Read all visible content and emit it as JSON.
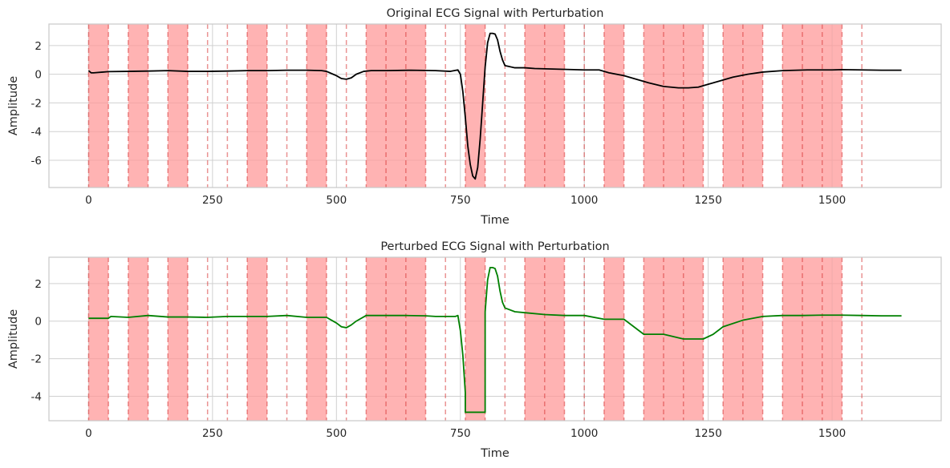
{
  "colors": {
    "region_fill": "#ff9999",
    "region_line": "#d62728",
    "original_line": "#000000",
    "perturbed_line": "#008000",
    "grid": "#d0d0d0",
    "frame": "#c8c8c8"
  },
  "chart_data": [
    {
      "type": "line",
      "title": "Original ECG Signal with Perturbation",
      "xlabel": "Time",
      "ylabel": "Amplitude",
      "xlim": [
        -80,
        1720
      ],
      "ylim": [
        -7.9,
        3.5
      ],
      "xticks": [
        0,
        250,
        500,
        750,
        1000,
        1250,
        1500
      ],
      "yticks": [
        -6,
        -4,
        -2,
        0,
        2
      ],
      "grid": true,
      "shaded_regions": [
        [
          0,
          40
        ],
        [
          80,
          120
        ],
        [
          160,
          200
        ],
        [
          320,
          360
        ],
        [
          440,
          480
        ],
        [
          560,
          600
        ],
        [
          600,
          640
        ],
        [
          640,
          680
        ],
        [
          760,
          800
        ],
        [
          880,
          920
        ],
        [
          920,
          960
        ],
        [
          1040,
          1080
        ],
        [
          1120,
          1160
        ],
        [
          1160,
          1200
        ],
        [
          1200,
          1240
        ],
        [
          1280,
          1320
        ],
        [
          1320,
          1360
        ],
        [
          1400,
          1440
        ],
        [
          1440,
          1480
        ],
        [
          1480,
          1500
        ],
        [
          1500,
          1520
        ]
      ],
      "dashed_boundaries": [
        0,
        40,
        80,
        120,
        160,
        200,
        240,
        280,
        320,
        360,
        400,
        440,
        480,
        520,
        560,
        600,
        640,
        680,
        720,
        760,
        800,
        840,
        880,
        920,
        960,
        1000,
        1040,
        1080,
        1120,
        1160,
        1200,
        1240,
        1280,
        1320,
        1360,
        1400,
        1440,
        1480,
        1520,
        1560
      ],
      "series": [
        {
          "color": "#000000",
          "x": [
            0,
            5,
            10,
            40,
            80,
            120,
            160,
            200,
            240,
            280,
            320,
            360,
            400,
            440,
            470,
            480,
            490,
            500,
            510,
            520,
            530,
            540,
            555,
            570,
            600,
            650,
            700,
            730,
            745,
            750,
            755,
            760,
            765,
            770,
            775,
            780,
            785,
            790,
            795,
            800,
            805,
            810,
            815,
            820,
            825,
            830,
            835,
            840,
            860,
            880,
            900,
            950,
            1000,
            1030,
            1050,
            1080,
            1100,
            1130,
            1160,
            1190,
            1210,
            1230,
            1250,
            1270,
            1300,
            1330,
            1360,
            1400,
            1450,
            1500,
            1520,
            1560,
            1600,
            1640
          ],
          "y": [
            0.25,
            0.1,
            0.1,
            0.18,
            0.2,
            0.22,
            0.25,
            0.2,
            0.2,
            0.22,
            0.25,
            0.25,
            0.28,
            0.28,
            0.25,
            0.2,
            0.05,
            -0.1,
            -0.3,
            -0.35,
            -0.25,
            0.0,
            0.2,
            0.25,
            0.25,
            0.28,
            0.25,
            0.2,
            0.3,
            0.0,
            -1.2,
            -3.0,
            -5.0,
            -6.3,
            -7.1,
            -7.3,
            -6.5,
            -4.5,
            -2.0,
            0.5,
            2.2,
            2.85,
            2.85,
            2.8,
            2.4,
            1.6,
            1.0,
            0.6,
            0.45,
            0.45,
            0.4,
            0.35,
            0.3,
            0.3,
            0.1,
            -0.1,
            -0.3,
            -0.6,
            -0.85,
            -0.95,
            -0.95,
            -0.9,
            -0.7,
            -0.5,
            -0.2,
            0.0,
            0.15,
            0.25,
            0.3,
            0.3,
            0.32,
            0.3,
            0.28,
            0.28
          ]
        }
      ]
    },
    {
      "type": "line",
      "title": "Perturbed ECG Signal with Perturbation",
      "xlabel": "Time",
      "ylabel": "Amplitude",
      "xlim": [
        -80,
        1720
      ],
      "ylim": [
        -5.3,
        3.4
      ],
      "xticks": [
        0,
        250,
        500,
        750,
        1000,
        1250,
        1500
      ],
      "yticks": [
        -4,
        -2,
        0,
        2
      ],
      "grid": true,
      "shaded_regions": [
        [
          0,
          40
        ],
        [
          80,
          120
        ],
        [
          160,
          200
        ],
        [
          320,
          360
        ],
        [
          440,
          480
        ],
        [
          560,
          600
        ],
        [
          600,
          640
        ],
        [
          640,
          680
        ],
        [
          760,
          800
        ],
        [
          880,
          920
        ],
        [
          920,
          960
        ],
        [
          1040,
          1080
        ],
        [
          1120,
          1160
        ],
        [
          1160,
          1200
        ],
        [
          1200,
          1240
        ],
        [
          1280,
          1320
        ],
        [
          1320,
          1360
        ],
        [
          1400,
          1440
        ],
        [
          1440,
          1480
        ],
        [
          1480,
          1500
        ],
        [
          1500,
          1520
        ]
      ],
      "dashed_boundaries": [
        0,
        40,
        80,
        120,
        160,
        200,
        240,
        280,
        320,
        360,
        400,
        440,
        480,
        520,
        560,
        600,
        640,
        680,
        720,
        760,
        800,
        840,
        880,
        920,
        960,
        1000,
        1040,
        1080,
        1120,
        1160,
        1200,
        1240,
        1280,
        1320,
        1360,
        1400,
        1440,
        1480,
        1520,
        1560
      ],
      "series": [
        {
          "color": "#008000",
          "x": [
            0,
            40,
            45,
            80,
            120,
            160,
            200,
            240,
            280,
            320,
            360,
            400,
            440,
            480,
            490,
            500,
            510,
            520,
            530,
            540,
            560,
            600,
            640,
            680,
            700,
            740,
            745,
            750,
            755,
            760,
            760,
            800,
            800,
            805,
            810,
            815,
            820,
            825,
            830,
            835,
            840,
            860,
            880,
            920,
            960,
            1000,
            1040,
            1080,
            1100,
            1120,
            1160,
            1200,
            1240,
            1260,
            1280,
            1320,
            1360,
            1400,
            1440,
            1480,
            1520,
            1560,
            1600,
            1640
          ],
          "y": [
            0.15,
            0.15,
            0.25,
            0.2,
            0.3,
            0.22,
            0.22,
            0.2,
            0.25,
            0.25,
            0.25,
            0.3,
            0.2,
            0.2,
            0.05,
            -0.1,
            -0.3,
            -0.35,
            -0.2,
            0.0,
            0.3,
            0.3,
            0.3,
            0.28,
            0.25,
            0.25,
            0.3,
            -0.5,
            -1.8,
            -3.8,
            -4.85,
            -4.85,
            0.5,
            2.2,
            2.85,
            2.85,
            2.8,
            2.4,
            1.6,
            1.0,
            0.7,
            0.5,
            0.45,
            0.35,
            0.3,
            0.3,
            0.1,
            0.1,
            -0.3,
            -0.7,
            -0.7,
            -0.95,
            -0.95,
            -0.7,
            -0.3,
            0.05,
            0.25,
            0.3,
            0.3,
            0.32,
            0.32,
            0.3,
            0.28,
            0.28
          ]
        }
      ]
    }
  ]
}
